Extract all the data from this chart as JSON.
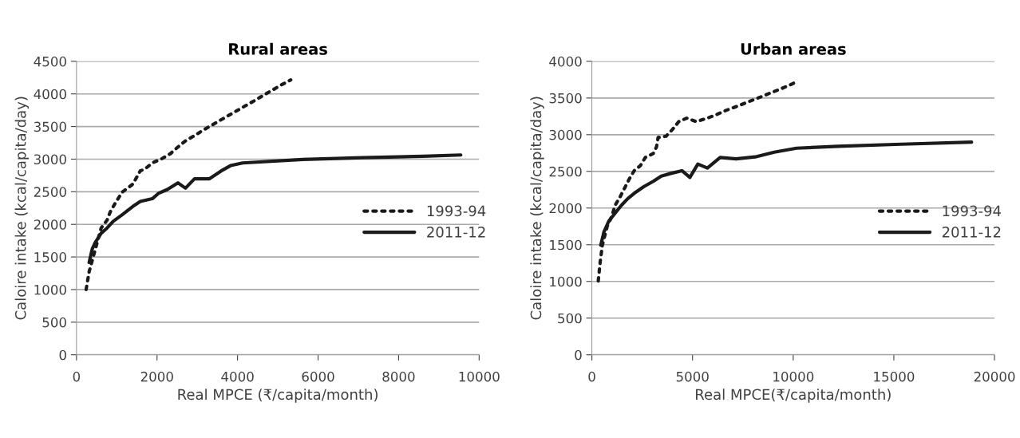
{
  "chart_data": [
    {
      "type": "line",
      "title": "Rural areas",
      "xlabel": "Real MPCE (₹/capita/month)",
      "ylabel": "Caloire intake (kcal/capita/day)",
      "xlim": [
        0,
        10000
      ],
      "xticks": [
        0,
        2000,
        4000,
        6000,
        8000,
        10000
      ],
      "ylim": [
        0,
        4500
      ],
      "yticks": [
        0,
        500,
        1000,
        1500,
        2000,
        2500,
        3000,
        3500,
        4000,
        4500
      ],
      "grid": "y",
      "legend": "right",
      "series": [
        {
          "name": "1993-94",
          "color": "#1a1a1a",
          "line_style": "dotted",
          "x": [
            239,
            277,
            314,
            613,
            762,
            837,
            987,
            1136,
            1398,
            1584,
            1697,
            1883,
            2108,
            2332,
            2519,
            2706,
            2930,
            3139,
            3356,
            3572,
            3789,
            4006,
            4215,
            4447,
            4664,
            4873,
            5097,
            5321
          ],
          "values": [
            1001,
            1139,
            1274,
            1945,
            2067,
            2189,
            2352,
            2494,
            2616,
            2820,
            2848,
            2942,
            3003,
            3084,
            3186,
            3279,
            3361,
            3442,
            3519,
            3597,
            3674,
            3751,
            3825,
            3906,
            3987,
            4061,
            4142,
            4215
          ]
        },
        {
          "name": "2011-12",
          "color": "#1a1a1a",
          "line_style": "solid",
          "x": [
            314,
            389,
            463,
            613,
            762,
            912,
            1136,
            1435,
            1584,
            1883,
            2033,
            2257,
            2519,
            2706,
            2930,
            3296,
            3595,
            3827,
            4126,
            5620,
            7115,
            8610,
            9544
          ],
          "values": [
            1416,
            1619,
            1721,
            1864,
            1945,
            2047,
            2148,
            2291,
            2352,
            2393,
            2474,
            2535,
            2637,
            2555,
            2698,
            2698,
            2820,
            2901,
            2942,
            2995,
            3023,
            3043,
            3064
          ]
        }
      ]
    },
    {
      "type": "line",
      "title": "Urban areas",
      "xlabel": "Real MPCE(₹/capita/month)",
      "ylabel": "Caloire intake (kcal/capita/day)",
      "xlim": [
        0,
        20000
      ],
      "xticks": [
        0,
        5000,
        10000,
        15000,
        20000
      ],
      "ylim": [
        0,
        4000
      ],
      "yticks": [
        0,
        500,
        1000,
        1500,
        2000,
        2500,
        3000,
        3500,
        4000
      ],
      "grid": "y",
      "legend": "right",
      "series": [
        {
          "name": "1993-94",
          "color": "#1a1a1a",
          "line_style": "dotted",
          "x": [
            316,
            364,
            411,
            522,
            759,
            996,
            1154,
            1391,
            1628,
            1866,
            2103,
            2419,
            2656,
            3051,
            3210,
            3289,
            3684,
            4000,
            4316,
            4711,
            5186,
            5739,
            6213,
            6688,
            7194,
            7715,
            8190,
            8711,
            9217,
            9692,
            10166
          ],
          "values": [
            1006,
            1133,
            1260,
            1495,
            1748,
            1893,
            2038,
            2147,
            2273,
            2400,
            2509,
            2581,
            2690,
            2744,
            2834,
            2961,
            2979,
            3070,
            3178,
            3225,
            3178,
            3225,
            3276,
            3334,
            3385,
            3442,
            3493,
            3551,
            3606,
            3660,
            3721
          ]
        },
        {
          "name": "2011-12",
          "color": "#1a1a1a",
          "line_style": "solid",
          "x": [
            443,
            601,
            838,
            1154,
            1470,
            1787,
            2103,
            2577,
            3051,
            3447,
            3921,
            4474,
            4869,
            5265,
            5739,
            6372,
            7162,
            8111,
            9059,
            10166,
            12221,
            15383,
            18861
          ],
          "values": [
            1495,
            1676,
            1821,
            1929,
            2038,
            2129,
            2201,
            2291,
            2364,
            2436,
            2472,
            2509,
            2418,
            2599,
            2545,
            2690,
            2671,
            2697,
            2762,
            2816,
            2841,
            2870,
            2899
          ]
        }
      ]
    }
  ]
}
